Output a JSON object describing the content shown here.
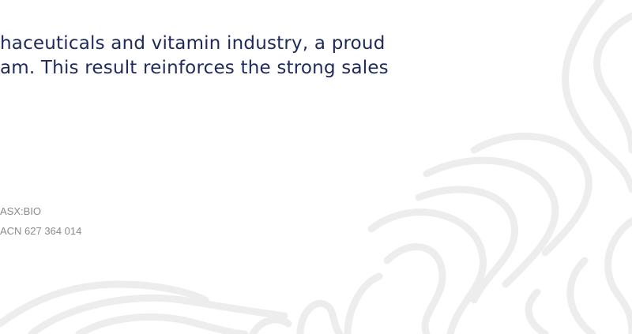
{
  "body": {
    "lines": [
      "haceuticals and vitamin industry, a proud",
      "am. This result reinforces the strong sales"
    ]
  },
  "footer": {
    "ticker": "ASX:BIO",
    "acn": "ACN 627 364 014"
  }
}
